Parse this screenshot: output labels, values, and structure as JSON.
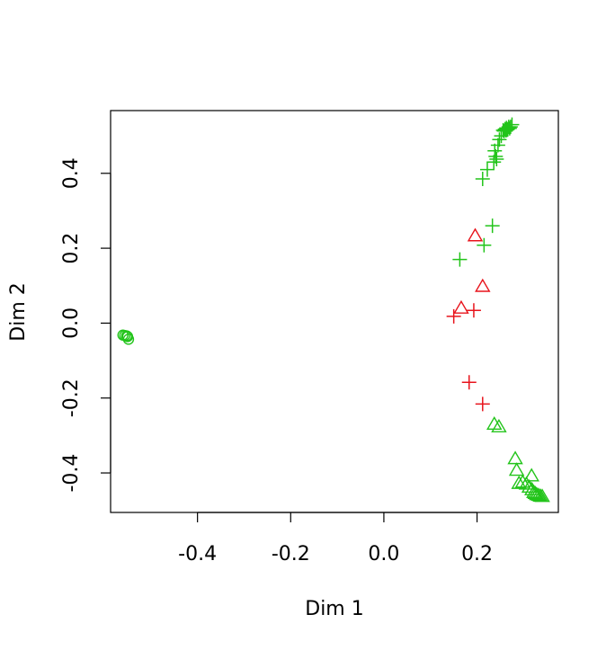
{
  "chart_data": {
    "type": "scatter",
    "title": "",
    "xlabel": "Dim 1",
    "ylabel": "Dim 2",
    "xlim": [
      -0.5865,
      0.3745
    ],
    "ylim": [
      -0.5055,
      0.5675
    ],
    "x_ticks": [
      -0.4,
      -0.2,
      0.0,
      0.2
    ],
    "y_ticks": [
      -0.4,
      -0.2,
      0.0,
      0.2,
      0.4
    ],
    "x_tick_labels": [
      "-0.4",
      "-0.2",
      "0.0",
      "0.2"
    ],
    "y_tick_labels": [
      "-0.4",
      "-0.2",
      "0.0",
      "0.2",
      "0.4"
    ],
    "grid": false,
    "legend": "none",
    "colors": {
      "green": "#22c41a",
      "red": "#e8141c"
    },
    "series": [
      {
        "marker": "plus",
        "color": "green",
        "points": [
          [
            0.275,
            0.53
          ],
          [
            0.272,
            0.524
          ],
          [
            0.27,
            0.52
          ],
          [
            0.268,
            0.524
          ],
          [
            0.266,
            0.518
          ],
          [
            0.264,
            0.516
          ],
          [
            0.263,
            0.521
          ],
          [
            0.262,
            0.515
          ],
          [
            0.26,
            0.518
          ],
          [
            0.258,
            0.513
          ],
          [
            0.256,
            0.515
          ],
          [
            0.252,
            0.5
          ],
          [
            0.248,
            0.49
          ],
          [
            0.245,
            0.475
          ],
          [
            0.238,
            0.46
          ],
          [
            0.24,
            0.445
          ],
          [
            0.242,
            0.438
          ],
          [
            0.236,
            0.43
          ],
          [
            0.222,
            0.41
          ],
          [
            0.212,
            0.385
          ],
          [
            0.233,
            0.26
          ],
          [
            0.215,
            0.208
          ],
          [
            0.163,
            0.17
          ]
        ]
      },
      {
        "marker": "triangle",
        "color": "red",
        "points": [
          [
            0.196,
            0.233
          ],
          [
            0.212,
            0.098
          ],
          [
            0.166,
            0.04
          ]
        ]
      },
      {
        "marker": "plus",
        "color": "red",
        "points": [
          [
            0.15,
            0.018
          ],
          [
            0.193,
            0.034
          ],
          [
            0.183,
            -0.158
          ],
          [
            0.212,
            -0.216
          ]
        ]
      },
      {
        "marker": "circle",
        "color": "green",
        "points": [
          [
            -0.56,
            -0.032
          ],
          [
            -0.556,
            -0.033
          ],
          [
            -0.552,
            -0.034
          ],
          [
            -0.55,
            -0.036
          ],
          [
            -0.548,
            -0.043
          ]
        ]
      },
      {
        "marker": "triangle",
        "color": "green",
        "points": [
          [
            0.237,
            -0.27
          ],
          [
            0.247,
            -0.277
          ],
          [
            0.282,
            -0.362
          ],
          [
            0.285,
            -0.393
          ],
          [
            0.29,
            -0.428
          ],
          [
            0.298,
            -0.425
          ],
          [
            0.306,
            -0.43
          ],
          [
            0.312,
            -0.438
          ],
          [
            0.317,
            -0.408
          ],
          [
            0.318,
            -0.445
          ],
          [
            0.322,
            -0.452
          ],
          [
            0.325,
            -0.455
          ],
          [
            0.328,
            -0.458
          ],
          [
            0.332,
            -0.46
          ],
          [
            0.336,
            -0.462
          ],
          [
            0.34,
            -0.463
          ]
        ]
      }
    ]
  }
}
